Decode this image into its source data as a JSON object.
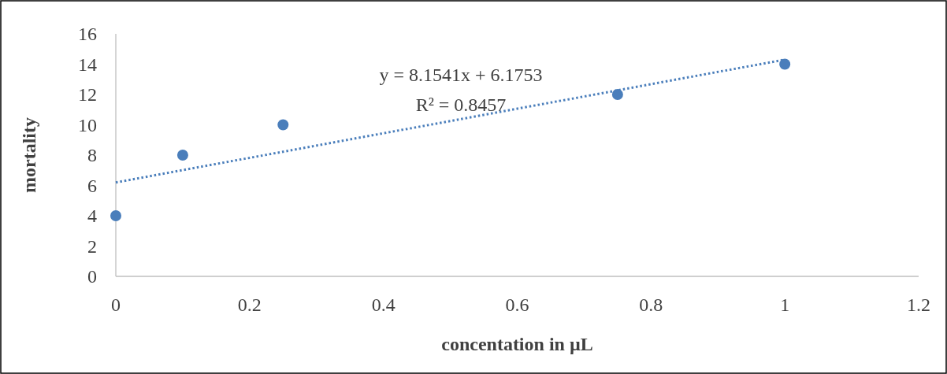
{
  "chart_data": {
    "type": "scatter",
    "xlabel": "concentation in µL",
    "ylabel": "mortality",
    "x": [
      0,
      0.1,
      0.25,
      0.75,
      1
    ],
    "series": [
      {
        "color": "#4a7ebb",
        "values": [
          4,
          8,
          10,
          12,
          14
        ],
        "marker": "circle"
      },
      {
        "type": "line",
        "color": "#4a7ebb",
        "x": [
          0,
          1
        ],
        "values": [
          6.2,
          14.3
        ],
        "line_style": "dotted",
        "marker": "none"
      }
    ],
    "annotations": [
      "y = 8.1541x + 6.1753",
      "R² = 0.8457"
    ],
    "xlim": [
      0,
      1.2
    ],
    "xticks": [
      0,
      0.2,
      0.4,
      0.6,
      0.8,
      1,
      1.2
    ],
    "ylim": [
      0,
      16
    ],
    "yticks": [
      0,
      2,
      4,
      6,
      8,
      10,
      12,
      14,
      16
    ],
    "grid": false
  }
}
